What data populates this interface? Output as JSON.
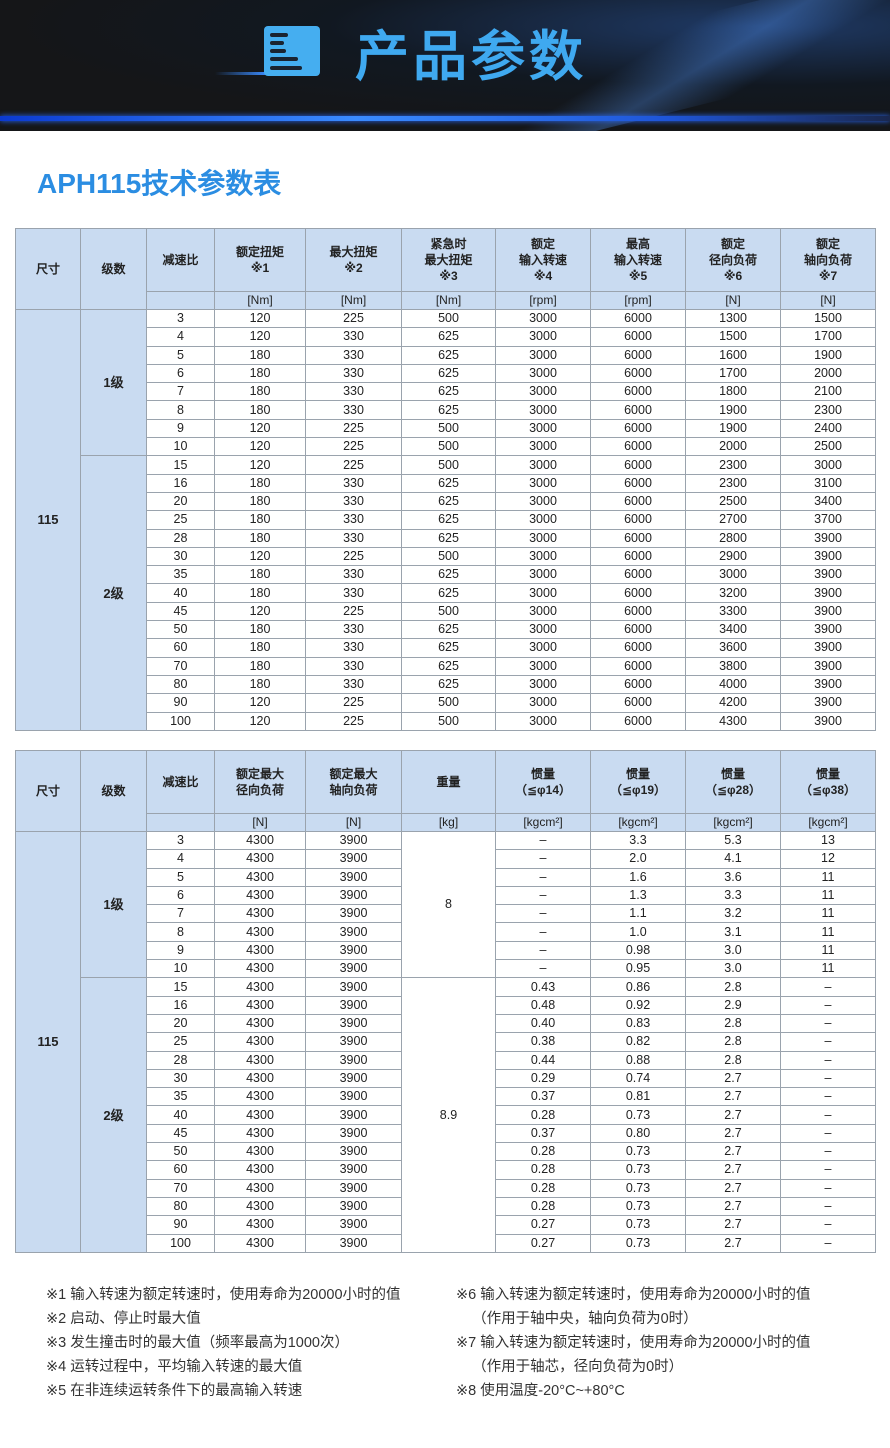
{
  "banner": {
    "title": "产品参数",
    "icon": "document-list-icon"
  },
  "doc_title": "APH115技术参数表",
  "colors": {
    "accent": "#2b8de2",
    "header_bg": "#c9dbf1",
    "banner_bg": "#151618"
  },
  "table1": {
    "headers": [
      "尺寸",
      "级数",
      "减速比",
      "额定扭矩\n※1",
      "最大扭矩\n※2",
      "紧急时\n最大扭矩\n※3",
      "额定\n输入转速\n※4",
      "最高\n输入转速\n※5",
      "额定\n径向负荷\n※6",
      "额定\n轴向负荷\n※7"
    ],
    "units": [
      "[Nm]",
      "[Nm]",
      "[Nm]",
      "[rpm]",
      "[rpm]",
      "[N]",
      "[N]"
    ],
    "size": "115",
    "stages": [
      {
        "label": "1级",
        "rows": [
          [
            "3",
            "120",
            "225",
            "500",
            "3000",
            "6000",
            "1300",
            "1500"
          ],
          [
            "4",
            "120",
            "330",
            "625",
            "3000",
            "6000",
            "1500",
            "1700"
          ],
          [
            "5",
            "180",
            "330",
            "625",
            "3000",
            "6000",
            "1600",
            "1900"
          ],
          [
            "6",
            "180",
            "330",
            "625",
            "3000",
            "6000",
            "1700",
            "2000"
          ],
          [
            "7",
            "180",
            "330",
            "625",
            "3000",
            "6000",
            "1800",
            "2100"
          ],
          [
            "8",
            "180",
            "330",
            "625",
            "3000",
            "6000",
            "1900",
            "2300"
          ],
          [
            "9",
            "120",
            "225",
            "500",
            "3000",
            "6000",
            "1900",
            "2400"
          ],
          [
            "10",
            "120",
            "225",
            "500",
            "3000",
            "6000",
            "2000",
            "2500"
          ]
        ]
      },
      {
        "label": "2级",
        "rows": [
          [
            "15",
            "120",
            "225",
            "500",
            "3000",
            "6000",
            "2300",
            "3000"
          ],
          [
            "16",
            "180",
            "330",
            "625",
            "3000",
            "6000",
            "2300",
            "3100"
          ],
          [
            "20",
            "180",
            "330",
            "625",
            "3000",
            "6000",
            "2500",
            "3400"
          ],
          [
            "25",
            "180",
            "330",
            "625",
            "3000",
            "6000",
            "2700",
            "3700"
          ],
          [
            "28",
            "180",
            "330",
            "625",
            "3000",
            "6000",
            "2800",
            "3900"
          ],
          [
            "30",
            "120",
            "225",
            "500",
            "3000",
            "6000",
            "2900",
            "3900"
          ],
          [
            "35",
            "180",
            "330",
            "625",
            "3000",
            "6000",
            "3000",
            "3900"
          ],
          [
            "40",
            "180",
            "330",
            "625",
            "3000",
            "6000",
            "3200",
            "3900"
          ],
          [
            "45",
            "120",
            "225",
            "500",
            "3000",
            "6000",
            "3300",
            "3900"
          ],
          [
            "50",
            "180",
            "330",
            "625",
            "3000",
            "6000",
            "3400",
            "3900"
          ],
          [
            "60",
            "180",
            "330",
            "625",
            "3000",
            "6000",
            "3600",
            "3900"
          ],
          [
            "70",
            "180",
            "330",
            "625",
            "3000",
            "6000",
            "3800",
            "3900"
          ],
          [
            "80",
            "180",
            "330",
            "625",
            "3000",
            "6000",
            "4000",
            "3900"
          ],
          [
            "90",
            "120",
            "225",
            "500",
            "3000",
            "6000",
            "4200",
            "3900"
          ],
          [
            "100",
            "120",
            "225",
            "500",
            "3000",
            "6000",
            "4300",
            "3900"
          ]
        ]
      }
    ]
  },
  "table2": {
    "headers": [
      "尺寸",
      "级数",
      "减速比",
      "额定最大\n径向负荷",
      "额定最大\n轴向负荷",
      "重量",
      "惯量\n（≦φ14）",
      "惯量\n（≦φ19）",
      "惯量\n（≦φ28）",
      "惯量\n（≦φ38）"
    ],
    "units": [
      "[N]",
      "[N]",
      "[kg]",
      "[kgcm²]",
      "[kgcm²]",
      "[kgcm²]",
      "[kgcm²]"
    ],
    "size": "115",
    "stages": [
      {
        "label": "1级",
        "weight": "8",
        "rows": [
          [
            "3",
            "4300",
            "3900",
            "–",
            "3.3",
            "5.3",
            "13"
          ],
          [
            "4",
            "4300",
            "3900",
            "–",
            "2.0",
            "4.1",
            "12"
          ],
          [
            "5",
            "4300",
            "3900",
            "–",
            "1.6",
            "3.6",
            "11"
          ],
          [
            "6",
            "4300",
            "3900",
            "–",
            "1.3",
            "3.3",
            "11"
          ],
          [
            "7",
            "4300",
            "3900",
            "–",
            "1.1",
            "3.2",
            "11"
          ],
          [
            "8",
            "4300",
            "3900",
            "–",
            "1.0",
            "3.1",
            "11"
          ],
          [
            "9",
            "4300",
            "3900",
            "–",
            "0.98",
            "3.0",
            "11"
          ],
          [
            "10",
            "4300",
            "3900",
            "–",
            "0.95",
            "3.0",
            "11"
          ]
        ]
      },
      {
        "label": "2级",
        "weight": "8.9",
        "rows": [
          [
            "15",
            "4300",
            "3900",
            "0.43",
            "0.86",
            "2.8",
            "–"
          ],
          [
            "16",
            "4300",
            "3900",
            "0.48",
            "0.92",
            "2.9",
            "–"
          ],
          [
            "20",
            "4300",
            "3900",
            "0.40",
            "0.83",
            "2.8",
            "–"
          ],
          [
            "25",
            "4300",
            "3900",
            "0.38",
            "0.82",
            "2.8",
            "–"
          ],
          [
            "28",
            "4300",
            "3900",
            "0.44",
            "0.88",
            "2.8",
            "–"
          ],
          [
            "30",
            "4300",
            "3900",
            "0.29",
            "0.74",
            "2.7",
            "–"
          ],
          [
            "35",
            "4300",
            "3900",
            "0.37",
            "0.81",
            "2.7",
            "–"
          ],
          [
            "40",
            "4300",
            "3900",
            "0.28",
            "0.73",
            "2.7",
            "–"
          ],
          [
            "45",
            "4300",
            "3900",
            "0.37",
            "0.80",
            "2.7",
            "–"
          ],
          [
            "50",
            "4300",
            "3900",
            "0.28",
            "0.73",
            "2.7",
            "–"
          ],
          [
            "60",
            "4300",
            "3900",
            "0.28",
            "0.73",
            "2.7",
            "–"
          ],
          [
            "70",
            "4300",
            "3900",
            "0.28",
            "0.73",
            "2.7",
            "–"
          ],
          [
            "80",
            "4300",
            "3900",
            "0.28",
            "0.73",
            "2.7",
            "–"
          ],
          [
            "90",
            "4300",
            "3900",
            "0.27",
            "0.73",
            "2.7",
            "–"
          ],
          [
            "100",
            "4300",
            "3900",
            "0.27",
            "0.73",
            "2.7",
            "–"
          ]
        ]
      }
    ]
  },
  "notes": {
    "left": [
      "※1 输入转速为额定转速时，使用寿命为20000小时的值",
      "※2 启动、停止时最大值",
      "※3 发生撞击时的最大值（频率最高为1000次）",
      "※4 运转过程中，平均输入转速的最大值",
      "※5 在非连续运转条件下的最高输入转速"
    ],
    "right": [
      "※6 输入转速为额定转速时，使用寿命为20000小时的值",
      "    （作用于轴中央，轴向负荷为0时）",
      "※7 输入转速为额定转速时，使用寿命为20000小时的值",
      "    （作用于轴芯，径向负荷为0时）",
      "※8 使用温度-20°C~+80°C"
    ]
  }
}
